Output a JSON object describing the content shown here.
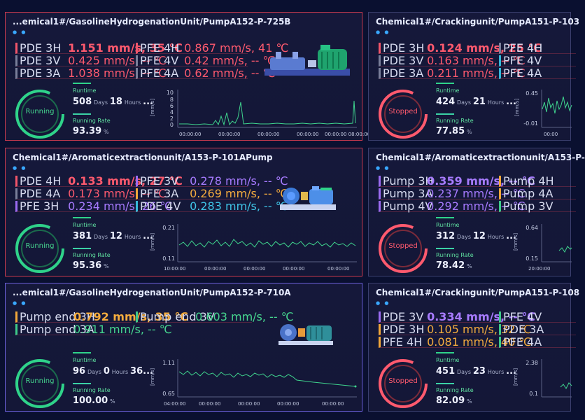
{
  "colors": {
    "background": "#0a1030",
    "running": "#2fd38a",
    "stopped": "#ff5a6e",
    "line": "#3fd48e"
  },
  "cards": [
    {
      "title": "...emical1#/GasolineHydrogenationUnit/PumpA152-P-725B",
      "status": "Running",
      "left_metrics": [
        {
          "label": "PDE 3H",
          "value": "1.151 mm/s, 35 ℃"
        },
        {
          "label": "PDE 3V",
          "value": "0.425 mm/s, -- ℃"
        },
        {
          "label": "PDE 3A",
          "value": "1.038 mm/s, -- ℃"
        }
      ],
      "right_metrics": [
        {
          "label": "PFE 4H",
          "value": "0.867 mm/s, 41 ℃"
        },
        {
          "label": "PFE 4V",
          "value": "0.42 mm/s, -- ℃"
        },
        {
          "label": "PFE 4A",
          "value": "0.62 mm/s, -- ℃"
        }
      ],
      "runtime_label": "Runtime",
      "days": "508",
      "days_unit": "Days",
      "hours": "18",
      "hours_unit": "Hours",
      "more": "...",
      "rate_label": "Running Rate",
      "rate": "93.39",
      "rate_unit": "%",
      "chart": {
        "y_unit": "[mm/s]",
        "y_ticks": [
          "10",
          "8",
          "6",
          "4",
          "2",
          "0"
        ],
        "x_ticks": [
          "00:00:00",
          "00:00:00",
          "00:00:00",
          "00:00:00",
          "00:00:00",
          "00:00:00 08:00:00"
        ]
      }
    },
    {
      "title": "Chemical1#/Crackingunit/PumpA151-P-103",
      "status": "Stopped",
      "left_metrics": [
        {
          "label": "PDE 3H",
          "value": "0.124 mm/s, 25 ℃"
        },
        {
          "label": "PDE 3V",
          "value": "0.163 mm/s, -- ℃"
        },
        {
          "label": "PDE 3A",
          "value": "0.211 mm/s, -- ℃"
        }
      ],
      "right_metrics": [
        {
          "label": "PFE 4H",
          "value": ""
        },
        {
          "label": "PFE 4V",
          "value": ""
        },
        {
          "label": "PFE 4A",
          "value": ""
        }
      ],
      "runtime_label": "Runtime",
      "days": "424",
      "days_unit": "Days",
      "hours": "21",
      "hours_unit": "Hours",
      "more": "...",
      "rate_label": "Running Rate",
      "rate": "77.85",
      "rate_unit": "%",
      "chart": {
        "y_unit": "[mm/s]",
        "y_ticks": [
          "0.45",
          "-0.01"
        ],
        "x_ticks": [
          "00:00"
        ]
      }
    },
    {
      "title": "Chemical1#/Aromaticextractionunit/A153-P-101APump",
      "status": "Running",
      "left_metrics": [
        {
          "label": "PDE 4H",
          "value": "0.133 mm/s, 27 ℃"
        },
        {
          "label": "PDE 4A",
          "value": "0.173 mm/s, -- ℃"
        },
        {
          "label": "PFE 3H",
          "value": "0.234 mm/s, 26 ℃"
        }
      ],
      "right_metrics": [
        {
          "label": "PFE 3V",
          "value": "0.278 mm/s, -- ℃"
        },
        {
          "label": "PFE 3A",
          "value": "0.269 mm/s, -- ℃"
        },
        {
          "label": "PDE 4V",
          "value": "0.283 mm/s, -- ℃"
        }
      ],
      "runtime_label": "Runtime",
      "days": "381",
      "days_unit": "Days",
      "hours": "12",
      "hours_unit": "Hours",
      "more": "...",
      "rate_label": "Running Rate",
      "rate": "95.36",
      "rate_unit": "%",
      "chart": {
        "y_unit": "[mm/s]",
        "y_ticks": [
          "0.21",
          "0.11"
        ],
        "x_ticks": [
          "10:00:00",
          "00:00:00",
          "00:00:00",
          "00:00:00",
          "00:00:00",
          "00:00:00"
        ]
      }
    },
    {
      "title": "Chemical1#/Aromaticextractionunit/A153-P-",
      "status": "Stopped",
      "left_metrics": [
        {
          "label": "Pump 3H",
          "value": "0.359 mm/s, -- ℃"
        },
        {
          "label": "Pump 3A",
          "value": "0.237 mm/s, -- ℃"
        },
        {
          "label": "Pump 4V",
          "value": "0.292 mm/s, -- ℃"
        }
      ],
      "right_metrics": [
        {
          "label": "Pump 4H",
          "value": ""
        },
        {
          "label": "Pump 4A",
          "value": ""
        },
        {
          "label": "Pump 3V",
          "value": ""
        }
      ],
      "runtime_label": "Runtime",
      "days": "312",
      "days_unit": "Days",
      "hours": "12",
      "hours_unit": "Hours",
      "more": "...",
      "rate_label": "Running Rate",
      "rate": "78.42",
      "rate_unit": "%",
      "chart": {
        "y_unit": "[mm/s]",
        "y_ticks": [
          "0.64",
          "0.15"
        ],
        "x_ticks": [
          "20:00:00"
        ]
      }
    },
    {
      "title": "...emical1#/GasolineHydrogenationUnit/PumpA152-P-710A",
      "status": "Running",
      "left_metrics": [
        {
          "label": "Pump end 3H",
          "value": "0.792 mm/s, 35 ℃"
        },
        {
          "label": "Pump end 3A",
          "value": "0.911 mm/s, -- ℃"
        }
      ],
      "right_metrics": [
        {
          "label": "Pump end 3V",
          "value": "0.603 mm/s, -- ℃"
        }
      ],
      "runtime_label": "Runtime",
      "days": "96",
      "days_unit": "Days",
      "hours": "0",
      "hours_unit": "Hours",
      "more": "36...",
      "rate_label": "Running Rate",
      "rate": "100.00",
      "rate_unit": "%",
      "chart": {
        "y_unit": "[mm/s]",
        "y_ticks": [
          "1.11",
          "0.65"
        ],
        "x_ticks": [
          "04:00:00",
          "00:00:00",
          "00:00:00",
          "00:00:00",
          "00:00:00",
          "00:00:00"
        ]
      }
    },
    {
      "title": "Chemical1#/Crackingunit/PumpA151-P-108",
      "status": "Stopped",
      "left_metrics": [
        {
          "label": "PDE 3V",
          "value": "0.334 mm/s, -- ℃"
        },
        {
          "label": "PDE 3H",
          "value": "0.105 mm/s, 32 ℃"
        },
        {
          "label": "PFE 4H",
          "value": "0.081 mm/s, 40 ℃"
        }
      ],
      "right_metrics": [
        {
          "label": "PFE 4V",
          "value": ""
        },
        {
          "label": "PDE 3A",
          "value": ""
        },
        {
          "label": "PFE 4A",
          "value": ""
        }
      ],
      "runtime_label": "Runtime",
      "days": "451",
      "days_unit": "Days",
      "hours": "23",
      "hours_unit": "Hours",
      "more": "...",
      "rate_label": "Running Rate",
      "rate": "82.09",
      "rate_unit": "%",
      "chart": {
        "y_unit": "[mm/s]",
        "y_ticks": [
          "2.38",
          "0.1"
        ],
        "x_ticks": []
      }
    }
  ]
}
